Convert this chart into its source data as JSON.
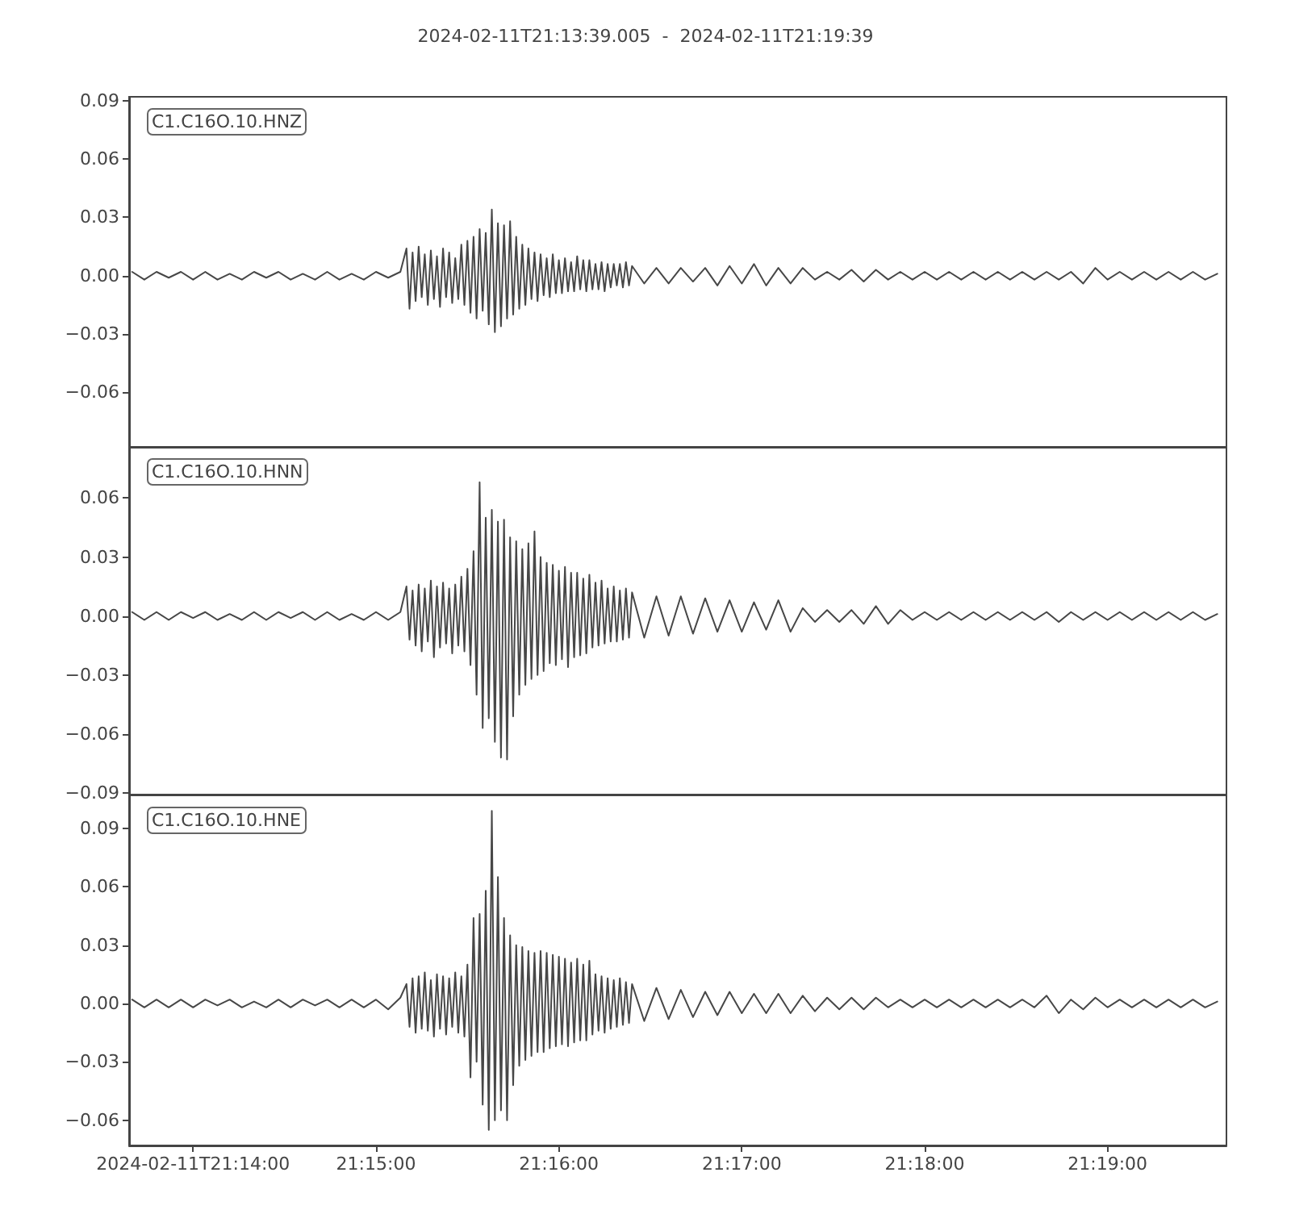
{
  "chart_data": [
    {
      "type": "line",
      "title": "2024-02-11T21:13:39.005  -  2024-02-11T21:19:39",
      "annotations": [
        "C1.C16O.10.HNZ"
      ],
      "color": "#474747",
      "x": [
        "2024-02-11T21:13:40",
        "2024-02-11T21:13:44",
        "2024-02-11T21:13:48",
        "2024-02-11T21:13:52",
        "2024-02-11T21:13:56",
        "2024-02-11T21:14:00",
        "2024-02-11T21:14:04",
        "2024-02-11T21:14:08",
        "2024-02-11T21:14:12",
        "2024-02-11T21:14:16",
        "2024-02-11T21:14:20",
        "2024-02-11T21:14:24",
        "2024-02-11T21:14:28",
        "2024-02-11T21:14:32",
        "2024-02-11T21:14:36",
        "2024-02-11T21:14:40",
        "2024-02-11T21:14:44",
        "2024-02-11T21:14:48",
        "2024-02-11T21:14:52",
        "2024-02-11T21:14:56",
        "2024-02-11T21:15:00",
        "2024-02-11T21:15:04",
        "2024-02-11T21:15:08",
        "2024-02-11T21:15:10",
        "2024-02-11T21:15:11",
        "2024-02-11T21:15:12",
        "2024-02-11T21:15:13",
        "2024-02-11T21:15:14",
        "2024-02-11T21:15:15",
        "2024-02-11T21:15:16",
        "2024-02-11T21:15:17",
        "2024-02-11T21:15:18",
        "2024-02-11T21:15:19",
        "2024-02-11T21:15:20",
        "2024-02-11T21:15:21",
        "2024-02-11T21:15:22",
        "2024-02-11T21:15:23",
        "2024-02-11T21:15:24",
        "2024-02-11T21:15:25",
        "2024-02-11T21:15:26",
        "2024-02-11T21:15:27",
        "2024-02-11T21:15:28",
        "2024-02-11T21:15:29",
        "2024-02-11T21:15:30",
        "2024-02-11T21:15:31",
        "2024-02-11T21:15:32",
        "2024-02-11T21:15:33",
        "2024-02-11T21:15:34",
        "2024-02-11T21:15:35",
        "2024-02-11T21:15:36",
        "2024-02-11T21:15:37",
        "2024-02-11T21:15:38",
        "2024-02-11T21:15:39",
        "2024-02-11T21:15:40",
        "2024-02-11T21:15:41",
        "2024-02-11T21:15:42",
        "2024-02-11T21:15:43",
        "2024-02-11T21:15:44",
        "2024-02-11T21:15:45",
        "2024-02-11T21:15:46",
        "2024-02-11T21:15:47",
        "2024-02-11T21:15:48",
        "2024-02-11T21:15:49",
        "2024-02-11T21:15:50",
        "2024-02-11T21:15:51",
        "2024-02-11T21:15:52",
        "2024-02-11T21:15:53",
        "2024-02-11T21:15:54",
        "2024-02-11T21:15:55",
        "2024-02-11T21:15:56",
        "2024-02-11T21:15:57",
        "2024-02-11T21:15:58",
        "2024-02-11T21:15:59",
        "2024-02-11T21:16:00",
        "2024-02-11T21:16:01",
        "2024-02-11T21:16:02",
        "2024-02-11T21:16:03",
        "2024-02-11T21:16:04",
        "2024-02-11T21:16:05",
        "2024-02-11T21:16:06",
        "2024-02-11T21:16:07",
        "2024-02-11T21:16:08",
        "2024-02-11T21:16:09",
        "2024-02-11T21:16:10",
        "2024-02-11T21:16:11",
        "2024-02-11T21:16:12",
        "2024-02-11T21:16:13",
        "2024-02-11T21:16:14",
        "2024-02-11T21:16:15",
        "2024-02-11T21:16:16",
        "2024-02-11T21:16:17",
        "2024-02-11T21:16:18",
        "2024-02-11T21:16:19",
        "2024-02-11T21:16:20",
        "2024-02-11T21:16:21",
        "2024-02-11T21:16:22",
        "2024-02-11T21:16:23",
        "2024-02-11T21:16:24",
        "2024-02-11T21:16:28",
        "2024-02-11T21:16:32",
        "2024-02-11T21:16:36",
        "2024-02-11T21:16:40",
        "2024-02-11T21:16:44",
        "2024-02-11T21:16:48",
        "2024-02-11T21:16:52",
        "2024-02-11T21:16:56",
        "2024-02-11T21:17:00",
        "2024-02-11T21:17:04",
        "2024-02-11T21:17:08",
        "2024-02-11T21:17:12",
        "2024-02-11T21:17:16",
        "2024-02-11T21:17:20",
        "2024-02-11T21:17:24",
        "2024-02-11T21:17:28",
        "2024-02-11T21:17:32",
        "2024-02-11T21:17:36",
        "2024-02-11T21:17:40",
        "2024-02-11T21:17:44",
        "2024-02-11T21:17:48",
        "2024-02-11T21:17:52",
        "2024-02-11T21:17:56",
        "2024-02-11T21:18:00",
        "2024-02-11T21:18:04",
        "2024-02-11T21:18:08",
        "2024-02-11T21:18:12",
        "2024-02-11T21:18:16",
        "2024-02-11T21:18:20",
        "2024-02-11T21:18:24",
        "2024-02-11T21:18:28",
        "2024-02-11T21:18:32",
        "2024-02-11T21:18:36",
        "2024-02-11T21:18:40",
        "2024-02-11T21:18:44",
        "2024-02-11T21:18:48",
        "2024-02-11T21:18:52",
        "2024-02-11T21:18:56",
        "2024-02-11T21:19:00",
        "2024-02-11T21:19:04",
        "2024-02-11T21:19:08",
        "2024-02-11T21:19:12",
        "2024-02-11T21:19:16",
        "2024-02-11T21:19:20",
        "2024-02-11T21:19:24",
        "2024-02-11T21:19:28",
        "2024-02-11T21:19:32",
        "2024-02-11T21:19:36"
      ],
      "values": [
        0.002,
        -0.002,
        0.002,
        -0.001,
        0.002,
        -0.002,
        0.002,
        -0.002,
        0.001,
        -0.002,
        0.002,
        -0.001,
        0.002,
        -0.002,
        0.001,
        -0.002,
        0.002,
        -0.002,
        0.001,
        -0.002,
        0.002,
        -0.001,
        0.002,
        0.014,
        -0.017,
        0.012,
        -0.013,
        0.015,
        -0.011,
        0.011,
        -0.015,
        0.013,
        -0.012,
        0.01,
        -0.016,
        0.014,
        -0.011,
        0.012,
        -0.014,
        0.009,
        -0.012,
        0.016,
        -0.015,
        0.018,
        -0.019,
        0.02,
        -0.022,
        0.024,
        -0.018,
        0.022,
        -0.025,
        0.034,
        -0.029,
        0.027,
        -0.026,
        0.026,
        -0.022,
        0.028,
        -0.02,
        0.02,
        -0.017,
        0.016,
        -0.015,
        0.014,
        -0.012,
        0.012,
        -0.013,
        0.011,
        -0.01,
        0.009,
        -0.011,
        0.011,
        -0.009,
        0.008,
        -0.009,
        0.009,
        -0.008,
        0.007,
        -0.008,
        0.01,
        -0.007,
        0.008,
        -0.008,
        0.008,
        -0.007,
        0.006,
        -0.007,
        0.007,
        -0.008,
        0.006,
        -0.006,
        0.006,
        -0.005,
        0.006,
        -0.006,
        0.007,
        -0.005,
        0.005,
        -0.004,
        0.004,
        -0.004,
        0.004,
        -0.003,
        0.004,
        -0.005,
        0.005,
        -0.004,
        0.006,
        -0.005,
        0.004,
        -0.004,
        0.004,
        -0.002,
        0.002,
        -0.002,
        0.003,
        -0.003,
        0.003,
        -0.002,
        0.002,
        -0.002,
        0.002,
        -0.002,
        0.002,
        -0.002,
        0.002,
        -0.002,
        0.002,
        -0.002,
        0.002,
        -0.002,
        0.002,
        -0.002,
        0.002,
        -0.004,
        0.004,
        -0.002,
        0.002,
        -0.002,
        0.002,
        -0.002,
        0.002,
        -0.002,
        0.002,
        -0.002,
        0.001
      ],
      "xlim": [
        "2024-02-11T21:13:39.005",
        "2024-02-11T21:19:39"
      ],
      "ylim": [
        -0.088,
        0.092
      ],
      "yticks": [
        0.09,
        0.06,
        0.03,
        {
          "value": 0,
          "label": "0.00"
        },
        {
          "value": -0.03,
          "label": "−0.03"
        },
        {
          "value": -0.06,
          "label": "−0.06"
        }
      ],
      "tick_labels": "y"
    },
    {
      "type": "line",
      "annotations": [
        "C1.C16O.10.HNN"
      ],
      "color": "#474747",
      "x": [
        "2024-02-11T21:13:40",
        "2024-02-11T21:13:44",
        "2024-02-11T21:13:48",
        "2024-02-11T21:13:52",
        "2024-02-11T21:13:56",
        "2024-02-11T21:14:00",
        "2024-02-11T21:14:04",
        "2024-02-11T21:14:08",
        "2024-02-11T21:14:12",
        "2024-02-11T21:14:16",
        "2024-02-11T21:14:20",
        "2024-02-11T21:14:24",
        "2024-02-11T21:14:28",
        "2024-02-11T21:14:32",
        "2024-02-11T21:14:36",
        "2024-02-11T21:14:40",
        "2024-02-11T21:14:44",
        "2024-02-11T21:14:48",
        "2024-02-11T21:14:52",
        "2024-02-11T21:14:56",
        "2024-02-11T21:15:00",
        "2024-02-11T21:15:04",
        "2024-02-11T21:15:08",
        "2024-02-11T21:15:10",
        "2024-02-11T21:15:11",
        "2024-02-11T21:15:12",
        "2024-02-11T21:15:13",
        "2024-02-11T21:15:14",
        "2024-02-11T21:15:15",
        "2024-02-11T21:15:16",
        "2024-02-11T21:15:17",
        "2024-02-11T21:15:18",
        "2024-02-11T21:15:19",
        "2024-02-11T21:15:20",
        "2024-02-11T21:15:21",
        "2024-02-11T21:15:22",
        "2024-02-11T21:15:23",
        "2024-02-11T21:15:24",
        "2024-02-11T21:15:25",
        "2024-02-11T21:15:26",
        "2024-02-11T21:15:27",
        "2024-02-11T21:15:28",
        "2024-02-11T21:15:29",
        "2024-02-11T21:15:30",
        "2024-02-11T21:15:31",
        "2024-02-11T21:15:32",
        "2024-02-11T21:15:33",
        "2024-02-11T21:15:34",
        "2024-02-11T21:15:35",
        "2024-02-11T21:15:36",
        "2024-02-11T21:15:37",
        "2024-02-11T21:15:38",
        "2024-02-11T21:15:39",
        "2024-02-11T21:15:40",
        "2024-02-11T21:15:41",
        "2024-02-11T21:15:42",
        "2024-02-11T21:15:43",
        "2024-02-11T21:15:44",
        "2024-02-11T21:15:45",
        "2024-02-11T21:15:46",
        "2024-02-11T21:15:47",
        "2024-02-11T21:15:48",
        "2024-02-11T21:15:49",
        "2024-02-11T21:15:50",
        "2024-02-11T21:15:51",
        "2024-02-11T21:15:52",
        "2024-02-11T21:15:53",
        "2024-02-11T21:15:54",
        "2024-02-11T21:15:55",
        "2024-02-11T21:15:56",
        "2024-02-11T21:15:57",
        "2024-02-11T21:15:58",
        "2024-02-11T21:15:59",
        "2024-02-11T21:16:00",
        "2024-02-11T21:16:01",
        "2024-02-11T21:16:02",
        "2024-02-11T21:16:03",
        "2024-02-11T21:16:04",
        "2024-02-11T21:16:05",
        "2024-02-11T21:16:06",
        "2024-02-11T21:16:07",
        "2024-02-11T21:16:08",
        "2024-02-11T21:16:09",
        "2024-02-11T21:16:10",
        "2024-02-11T21:16:11",
        "2024-02-11T21:16:12",
        "2024-02-11T21:16:13",
        "2024-02-11T21:16:14",
        "2024-02-11T21:16:15",
        "2024-02-11T21:16:16",
        "2024-02-11T21:16:17",
        "2024-02-11T21:16:18",
        "2024-02-11T21:16:19",
        "2024-02-11T21:16:20",
        "2024-02-11T21:16:21",
        "2024-02-11T21:16:22",
        "2024-02-11T21:16:23",
        "2024-02-11T21:16:24",
        "2024-02-11T21:16:28",
        "2024-02-11T21:16:32",
        "2024-02-11T21:16:36",
        "2024-02-11T21:16:40",
        "2024-02-11T21:16:44",
        "2024-02-11T21:16:48",
        "2024-02-11T21:16:52",
        "2024-02-11T21:16:56",
        "2024-02-11T21:17:00",
        "2024-02-11T21:17:04",
        "2024-02-11T21:17:08",
        "2024-02-11T21:17:12",
        "2024-02-11T21:17:16",
        "2024-02-11T21:17:20",
        "2024-02-11T21:17:24",
        "2024-02-11T21:17:28",
        "2024-02-11T21:17:32",
        "2024-02-11T21:17:36",
        "2024-02-11T21:17:40",
        "2024-02-11T21:17:44",
        "2024-02-11T21:17:48",
        "2024-02-11T21:17:52",
        "2024-02-11T21:17:56",
        "2024-02-11T21:18:00",
        "2024-02-11T21:18:04",
        "2024-02-11T21:18:08",
        "2024-02-11T21:18:12",
        "2024-02-11T21:18:16",
        "2024-02-11T21:18:20",
        "2024-02-11T21:18:24",
        "2024-02-11T21:18:28",
        "2024-02-11T21:18:32",
        "2024-02-11T21:18:36",
        "2024-02-11T21:18:40",
        "2024-02-11T21:18:44",
        "2024-02-11T21:18:48",
        "2024-02-11T21:18:52",
        "2024-02-11T21:18:56",
        "2024-02-11T21:19:00",
        "2024-02-11T21:19:04",
        "2024-02-11T21:19:08",
        "2024-02-11T21:19:12",
        "2024-02-11T21:19:16",
        "2024-02-11T21:19:20",
        "2024-02-11T21:19:24",
        "2024-02-11T21:19:28",
        "2024-02-11T21:19:32",
        "2024-02-11T21:19:36"
      ],
      "values": [
        0.002,
        -0.002,
        0.002,
        -0.002,
        0.002,
        -0.001,
        0.002,
        -0.002,
        0.001,
        -0.002,
        0.002,
        -0.002,
        0.002,
        -0.001,
        0.002,
        -0.002,
        0.002,
        -0.002,
        0.001,
        -0.002,
        0.002,
        -0.002,
        0.002,
        0.015,
        -0.012,
        0.013,
        -0.015,
        0.016,
        -0.018,
        0.014,
        -0.013,
        0.018,
        -0.021,
        0.015,
        -0.016,
        0.017,
        -0.014,
        0.014,
        -0.019,
        0.016,
        -0.015,
        0.02,
        -0.018,
        0.024,
        -0.025,
        0.033,
        -0.04,
        0.068,
        -0.057,
        0.05,
        -0.052,
        0.054,
        -0.064,
        0.048,
        -0.072,
        0.049,
        -0.073,
        0.04,
        -0.051,
        0.038,
        -0.04,
        0.034,
        -0.035,
        0.037,
        -0.032,
        0.043,
        -0.03,
        0.03,
        -0.028,
        0.027,
        -0.024,
        0.026,
        -0.025,
        0.023,
        -0.022,
        0.025,
        -0.026,
        0.022,
        -0.021,
        0.022,
        -0.02,
        0.019,
        -0.019,
        0.021,
        -0.016,
        0.017,
        -0.015,
        0.018,
        -0.014,
        0.014,
        -0.013,
        0.015,
        -0.013,
        0.013,
        -0.012,
        0.014,
        -0.011,
        0.012,
        -0.011,
        0.01,
        -0.01,
        0.01,
        -0.009,
        0.009,
        -0.008,
        0.008,
        -0.008,
        0.007,
        -0.007,
        0.008,
        -0.008,
        0.004,
        -0.003,
        0.003,
        -0.003,
        0.003,
        -0.004,
        0.005,
        -0.004,
        0.003,
        -0.002,
        0.002,
        -0.002,
        0.002,
        -0.002,
        0.002,
        -0.002,
        0.002,
        -0.002,
        0.002,
        -0.002,
        0.002,
        -0.003,
        0.002,
        -0.002,
        0.002,
        -0.002,
        0.002,
        -0.002,
        0.002,
        -0.002,
        0.002,
        -0.002,
        0.002,
        -0.002,
        0.001
      ],
      "xlim": [
        "2024-02-11T21:13:39.005",
        "2024-02-11T21:19:39"
      ],
      "ylim": [
        -0.091,
        0.086
      ],
      "yticks": [
        0.06,
        0.03,
        {
          "value": 0,
          "label": "0.00"
        },
        {
          "value": -0.03,
          "label": "−0.03"
        },
        {
          "value": -0.06,
          "label": "−0.06"
        },
        {
          "value": -0.09,
          "label": "−0.09"
        }
      ],
      "tick_labels": "y"
    },
    {
      "type": "line",
      "annotations": [
        "C1.C16O.10.HNE"
      ],
      "color": "#474747",
      "x": [
        "2024-02-11T21:13:40",
        "2024-02-11T21:13:44",
        "2024-02-11T21:13:48",
        "2024-02-11T21:13:52",
        "2024-02-11T21:13:56",
        "2024-02-11T21:14:00",
        "2024-02-11T21:14:04",
        "2024-02-11T21:14:08",
        "2024-02-11T21:14:12",
        "2024-02-11T21:14:16",
        "2024-02-11T21:14:20",
        "2024-02-11T21:14:24",
        "2024-02-11T21:14:28",
        "2024-02-11T21:14:32",
        "2024-02-11T21:14:36",
        "2024-02-11T21:14:40",
        "2024-02-11T21:14:44",
        "2024-02-11T21:14:48",
        "2024-02-11T21:14:52",
        "2024-02-11T21:14:56",
        "2024-02-11T21:15:00",
        "2024-02-11T21:15:04",
        "2024-02-11T21:15:08",
        "2024-02-11T21:15:10",
        "2024-02-11T21:15:11",
        "2024-02-11T21:15:12",
        "2024-02-11T21:15:13",
        "2024-02-11T21:15:14",
        "2024-02-11T21:15:15",
        "2024-02-11T21:15:16",
        "2024-02-11T21:15:17",
        "2024-02-11T21:15:18",
        "2024-02-11T21:15:19",
        "2024-02-11T21:15:20",
        "2024-02-11T21:15:21",
        "2024-02-11T21:15:22",
        "2024-02-11T21:15:23",
        "2024-02-11T21:15:24",
        "2024-02-11T21:15:25",
        "2024-02-11T21:15:26",
        "2024-02-11T21:15:27",
        "2024-02-11T21:15:28",
        "2024-02-11T21:15:29",
        "2024-02-11T21:15:30",
        "2024-02-11T21:15:31",
        "2024-02-11T21:15:32",
        "2024-02-11T21:15:33",
        "2024-02-11T21:15:34",
        "2024-02-11T21:15:35",
        "2024-02-11T21:15:36",
        "2024-02-11T21:15:37",
        "2024-02-11T21:15:38",
        "2024-02-11T21:15:39",
        "2024-02-11T21:15:40",
        "2024-02-11T21:15:41",
        "2024-02-11T21:15:42",
        "2024-02-11T21:15:43",
        "2024-02-11T21:15:44",
        "2024-02-11T21:15:45",
        "2024-02-11T21:15:46",
        "2024-02-11T21:15:47",
        "2024-02-11T21:15:48",
        "2024-02-11T21:15:49",
        "2024-02-11T21:15:50",
        "2024-02-11T21:15:51",
        "2024-02-11T21:15:52",
        "2024-02-11T21:15:53",
        "2024-02-11T21:15:54",
        "2024-02-11T21:15:55",
        "2024-02-11T21:15:56",
        "2024-02-11T21:15:57",
        "2024-02-11T21:15:58",
        "2024-02-11T21:15:59",
        "2024-02-11T21:16:00",
        "2024-02-11T21:16:01",
        "2024-02-11T21:16:02",
        "2024-02-11T21:16:03",
        "2024-02-11T21:16:04",
        "2024-02-11T21:16:05",
        "2024-02-11T21:16:06",
        "2024-02-11T21:16:07",
        "2024-02-11T21:16:08",
        "2024-02-11T21:16:09",
        "2024-02-11T21:16:10",
        "2024-02-11T21:16:11",
        "2024-02-11T21:16:12",
        "2024-02-11T21:16:13",
        "2024-02-11T21:16:14",
        "2024-02-11T21:16:15",
        "2024-02-11T21:16:16",
        "2024-02-11T21:16:17",
        "2024-02-11T21:16:18",
        "2024-02-11T21:16:19",
        "2024-02-11T21:16:20",
        "2024-02-11T21:16:21",
        "2024-02-11T21:16:22",
        "2024-02-11T21:16:23",
        "2024-02-11T21:16:24",
        "2024-02-11T21:16:28",
        "2024-02-11T21:16:32",
        "2024-02-11T21:16:36",
        "2024-02-11T21:16:40",
        "2024-02-11T21:16:44",
        "2024-02-11T21:16:48",
        "2024-02-11T21:16:52",
        "2024-02-11T21:16:56",
        "2024-02-11T21:17:00",
        "2024-02-11T21:17:04",
        "2024-02-11T21:17:08",
        "2024-02-11T21:17:12",
        "2024-02-11T21:17:16",
        "2024-02-11T21:17:20",
        "2024-02-11T21:17:24",
        "2024-02-11T21:17:28",
        "2024-02-11T21:17:32",
        "2024-02-11T21:17:36",
        "2024-02-11T21:17:40",
        "2024-02-11T21:17:44",
        "2024-02-11T21:17:48",
        "2024-02-11T21:17:52",
        "2024-02-11T21:17:56",
        "2024-02-11T21:18:00",
        "2024-02-11T21:18:04",
        "2024-02-11T21:18:08",
        "2024-02-11T21:18:12",
        "2024-02-11T21:18:16",
        "2024-02-11T21:18:20",
        "2024-02-11T21:18:24",
        "2024-02-11T21:18:28",
        "2024-02-11T21:18:32",
        "2024-02-11T21:18:36",
        "2024-02-11T21:18:40",
        "2024-02-11T21:18:44",
        "2024-02-11T21:18:48",
        "2024-02-11T21:18:52",
        "2024-02-11T21:18:56",
        "2024-02-11T21:19:00",
        "2024-02-11T21:19:04",
        "2024-02-11T21:19:08",
        "2024-02-11T21:19:12",
        "2024-02-11T21:19:16",
        "2024-02-11T21:19:20",
        "2024-02-11T21:19:24",
        "2024-02-11T21:19:28",
        "2024-02-11T21:19:32",
        "2024-02-11T21:19:36"
      ],
      "values": [
        0.002,
        -0.002,
        0.002,
        -0.002,
        0.002,
        -0.002,
        0.002,
        -0.001,
        0.002,
        -0.002,
        0.001,
        -0.002,
        0.002,
        -0.002,
        0.002,
        -0.001,
        0.002,
        -0.002,
        0.002,
        -0.002,
        0.002,
        -0.003,
        0.003,
        0.01,
        -0.012,
        0.013,
        -0.015,
        0.014,
        -0.013,
        0.016,
        -0.014,
        0.012,
        -0.017,
        0.015,
        -0.013,
        0.014,
        -0.016,
        0.013,
        -0.012,
        0.016,
        -0.015,
        0.014,
        -0.017,
        0.02,
        -0.038,
        0.044,
        -0.03,
        0.046,
        -0.052,
        0.058,
        -0.065,
        0.099,
        -0.06,
        0.065,
        -0.055,
        0.044,
        -0.06,
        0.035,
        -0.042,
        0.03,
        -0.032,
        0.029,
        -0.029,
        0.027,
        -0.027,
        0.026,
        -0.025,
        0.027,
        -0.025,
        0.026,
        -0.023,
        0.025,
        -0.022,
        0.024,
        -0.021,
        0.023,
        -0.022,
        0.021,
        -0.02,
        0.023,
        -0.019,
        0.02,
        -0.019,
        0.022,
        -0.016,
        0.015,
        -0.014,
        0.014,
        -0.015,
        0.013,
        -0.013,
        0.012,
        -0.012,
        0.013,
        -0.011,
        0.011,
        -0.01,
        0.01,
        -0.009,
        0.008,
        -0.008,
        0.007,
        -0.007,
        0.006,
        -0.006,
        0.006,
        -0.005,
        0.005,
        -0.005,
        0.005,
        -0.005,
        0.004,
        -0.004,
        0.003,
        -0.003,
        0.003,
        -0.003,
        0.003,
        -0.002,
        0.002,
        -0.002,
        0.002,
        -0.002,
        0.002,
        -0.002,
        0.002,
        -0.002,
        0.002,
        -0.002,
        0.002,
        -0.002,
        0.004,
        -0.005,
        0.002,
        -0.003,
        0.003,
        -0.002,
        0.002,
        -0.002,
        0.002,
        -0.002,
        0.002,
        -0.002,
        0.002,
        -0.002,
        0.001
      ],
      "xlim": [
        "2024-02-11T21:13:39.005",
        "2024-02-11T21:19:39"
      ],
      "ylim": [
        -0.073,
        0.107
      ],
      "xticks": [
        {
          "value": "2024-02-11T21:14:00",
          "label": "2024-02-11T21:14:00"
        },
        {
          "value": "2024-02-11T21:15:00",
          "label": "21:15:00"
        },
        {
          "value": "2024-02-11T21:16:00",
          "label": "21:16:00"
        },
        {
          "value": "2024-02-11T21:17:00",
          "label": "21:17:00"
        },
        {
          "value": "2024-02-11T21:18:00",
          "label": "21:18:00"
        },
        {
          "value": "2024-02-11T21:19:00",
          "label": "21:19:00"
        }
      ],
      "yticks": [
        0.09,
        0.06,
        0.03,
        {
          "value": 0,
          "label": "0.00"
        },
        {
          "value": -0.03,
          "label": "−0.03"
        },
        {
          "value": -0.06,
          "label": "−0.06"
        }
      ]
    }
  ]
}
